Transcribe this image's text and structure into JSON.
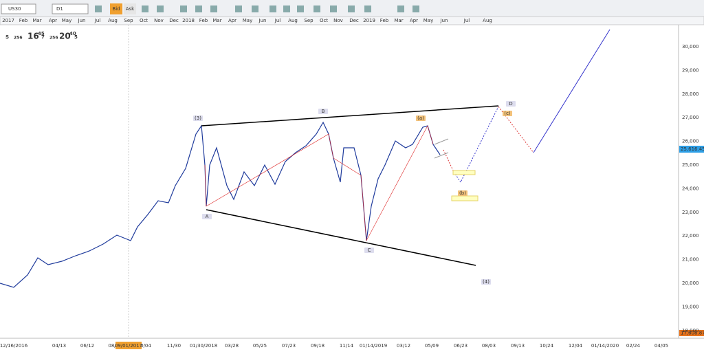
{
  "toolbar": {
    "symbol": "US30",
    "timeframe": "D1",
    "bid": "Bid",
    "ask": "Ask"
  },
  "quote": {
    "label": "S",
    "spread": "256",
    "bid_big": "16",
    "bid_pips": "45",
    "bid_frac": "7",
    "spread2": "256",
    "ask_big": "20",
    "ask_pips": "40",
    "ask_frac": "5"
  },
  "top_timeline": [
    "2017",
    "Feb",
    "Mar",
    "Apr",
    "May",
    "Jun",
    "Jul",
    "Aug",
    "Sep",
    "Oct",
    "Nov",
    "Dec",
    "2018",
    "Feb",
    "Mar",
    "Apr",
    "May",
    "Jun",
    "Jul",
    "Aug",
    "Sep",
    "Oct",
    "Nov",
    "Dec",
    "2019",
    "Feb",
    "Mar",
    "Apr",
    "May",
    "Jun",
    "Jul",
    "Aug"
  ],
  "price_axis": [
    "30,000",
    "29,000",
    "28,000",
    "27,000",
    "26,000",
    "25,000",
    "24,000",
    "23,000",
    "22,000",
    "21,000",
    "20,000",
    "19,000",
    "18,000"
  ],
  "current_price": "25,616.45",
  "low_price": "17,808.87",
  "date_axis": [
    "12/16/2016",
    "04/13",
    "06/12",
    "08/",
    "09/01/2017",
    "0/04",
    "11/30",
    "01/30/2018",
    "03/28",
    "05/25",
    "07/23",
    "09/18",
    "11/14",
    "01/14/2019",
    "03/12",
    "05/09",
    "06/23",
    "08/03",
    "09/13",
    "10/24",
    "12/04",
    "01/14/2020",
    "02/24",
    "04/05"
  ],
  "waves": [
    "(3)",
    "B",
    "(a)",
    "D",
    "(c)",
    "(b)",
    "A",
    "C",
    "(4)"
  ]
}
